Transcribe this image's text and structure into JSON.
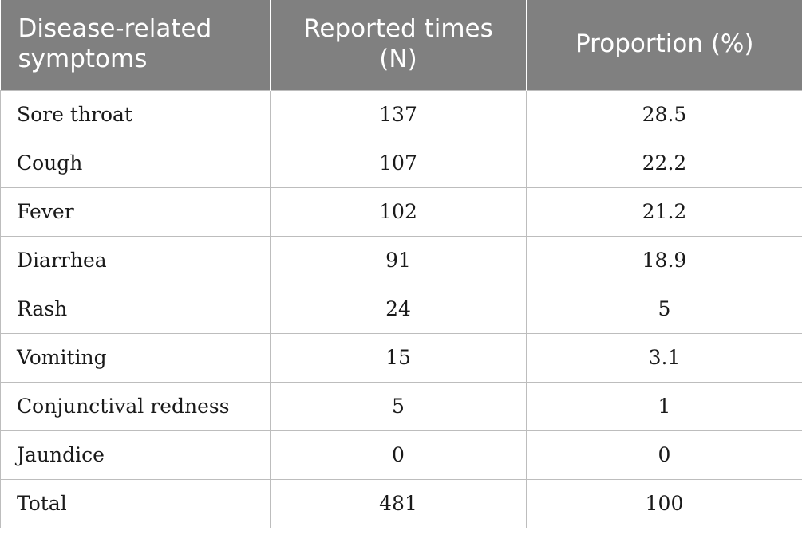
{
  "table": {
    "headers": [
      "Disease-related symptoms",
      "Reported times (N)",
      "Proportion (%)"
    ],
    "rows": [
      [
        "Sore throat",
        "137",
        "28.5"
      ],
      [
        "Cough",
        "107",
        "22.2"
      ],
      [
        "Fever",
        "102",
        "21.2"
      ],
      [
        "Diarrhea",
        "91",
        "18.9"
      ],
      [
        "Rash",
        "24",
        "5"
      ],
      [
        "Vomiting",
        "15",
        "3.1"
      ],
      [
        "Conjunctival redness",
        "5",
        "1"
      ],
      [
        "Jaundice",
        "0",
        "0"
      ],
      [
        "Total",
        "481",
        "100"
      ]
    ]
  },
  "colors": {
    "header_background": "#808080",
    "header_text": "#ffffff",
    "grid_line": "#bdbdbd",
    "body_text": "#1a1a1a"
  }
}
